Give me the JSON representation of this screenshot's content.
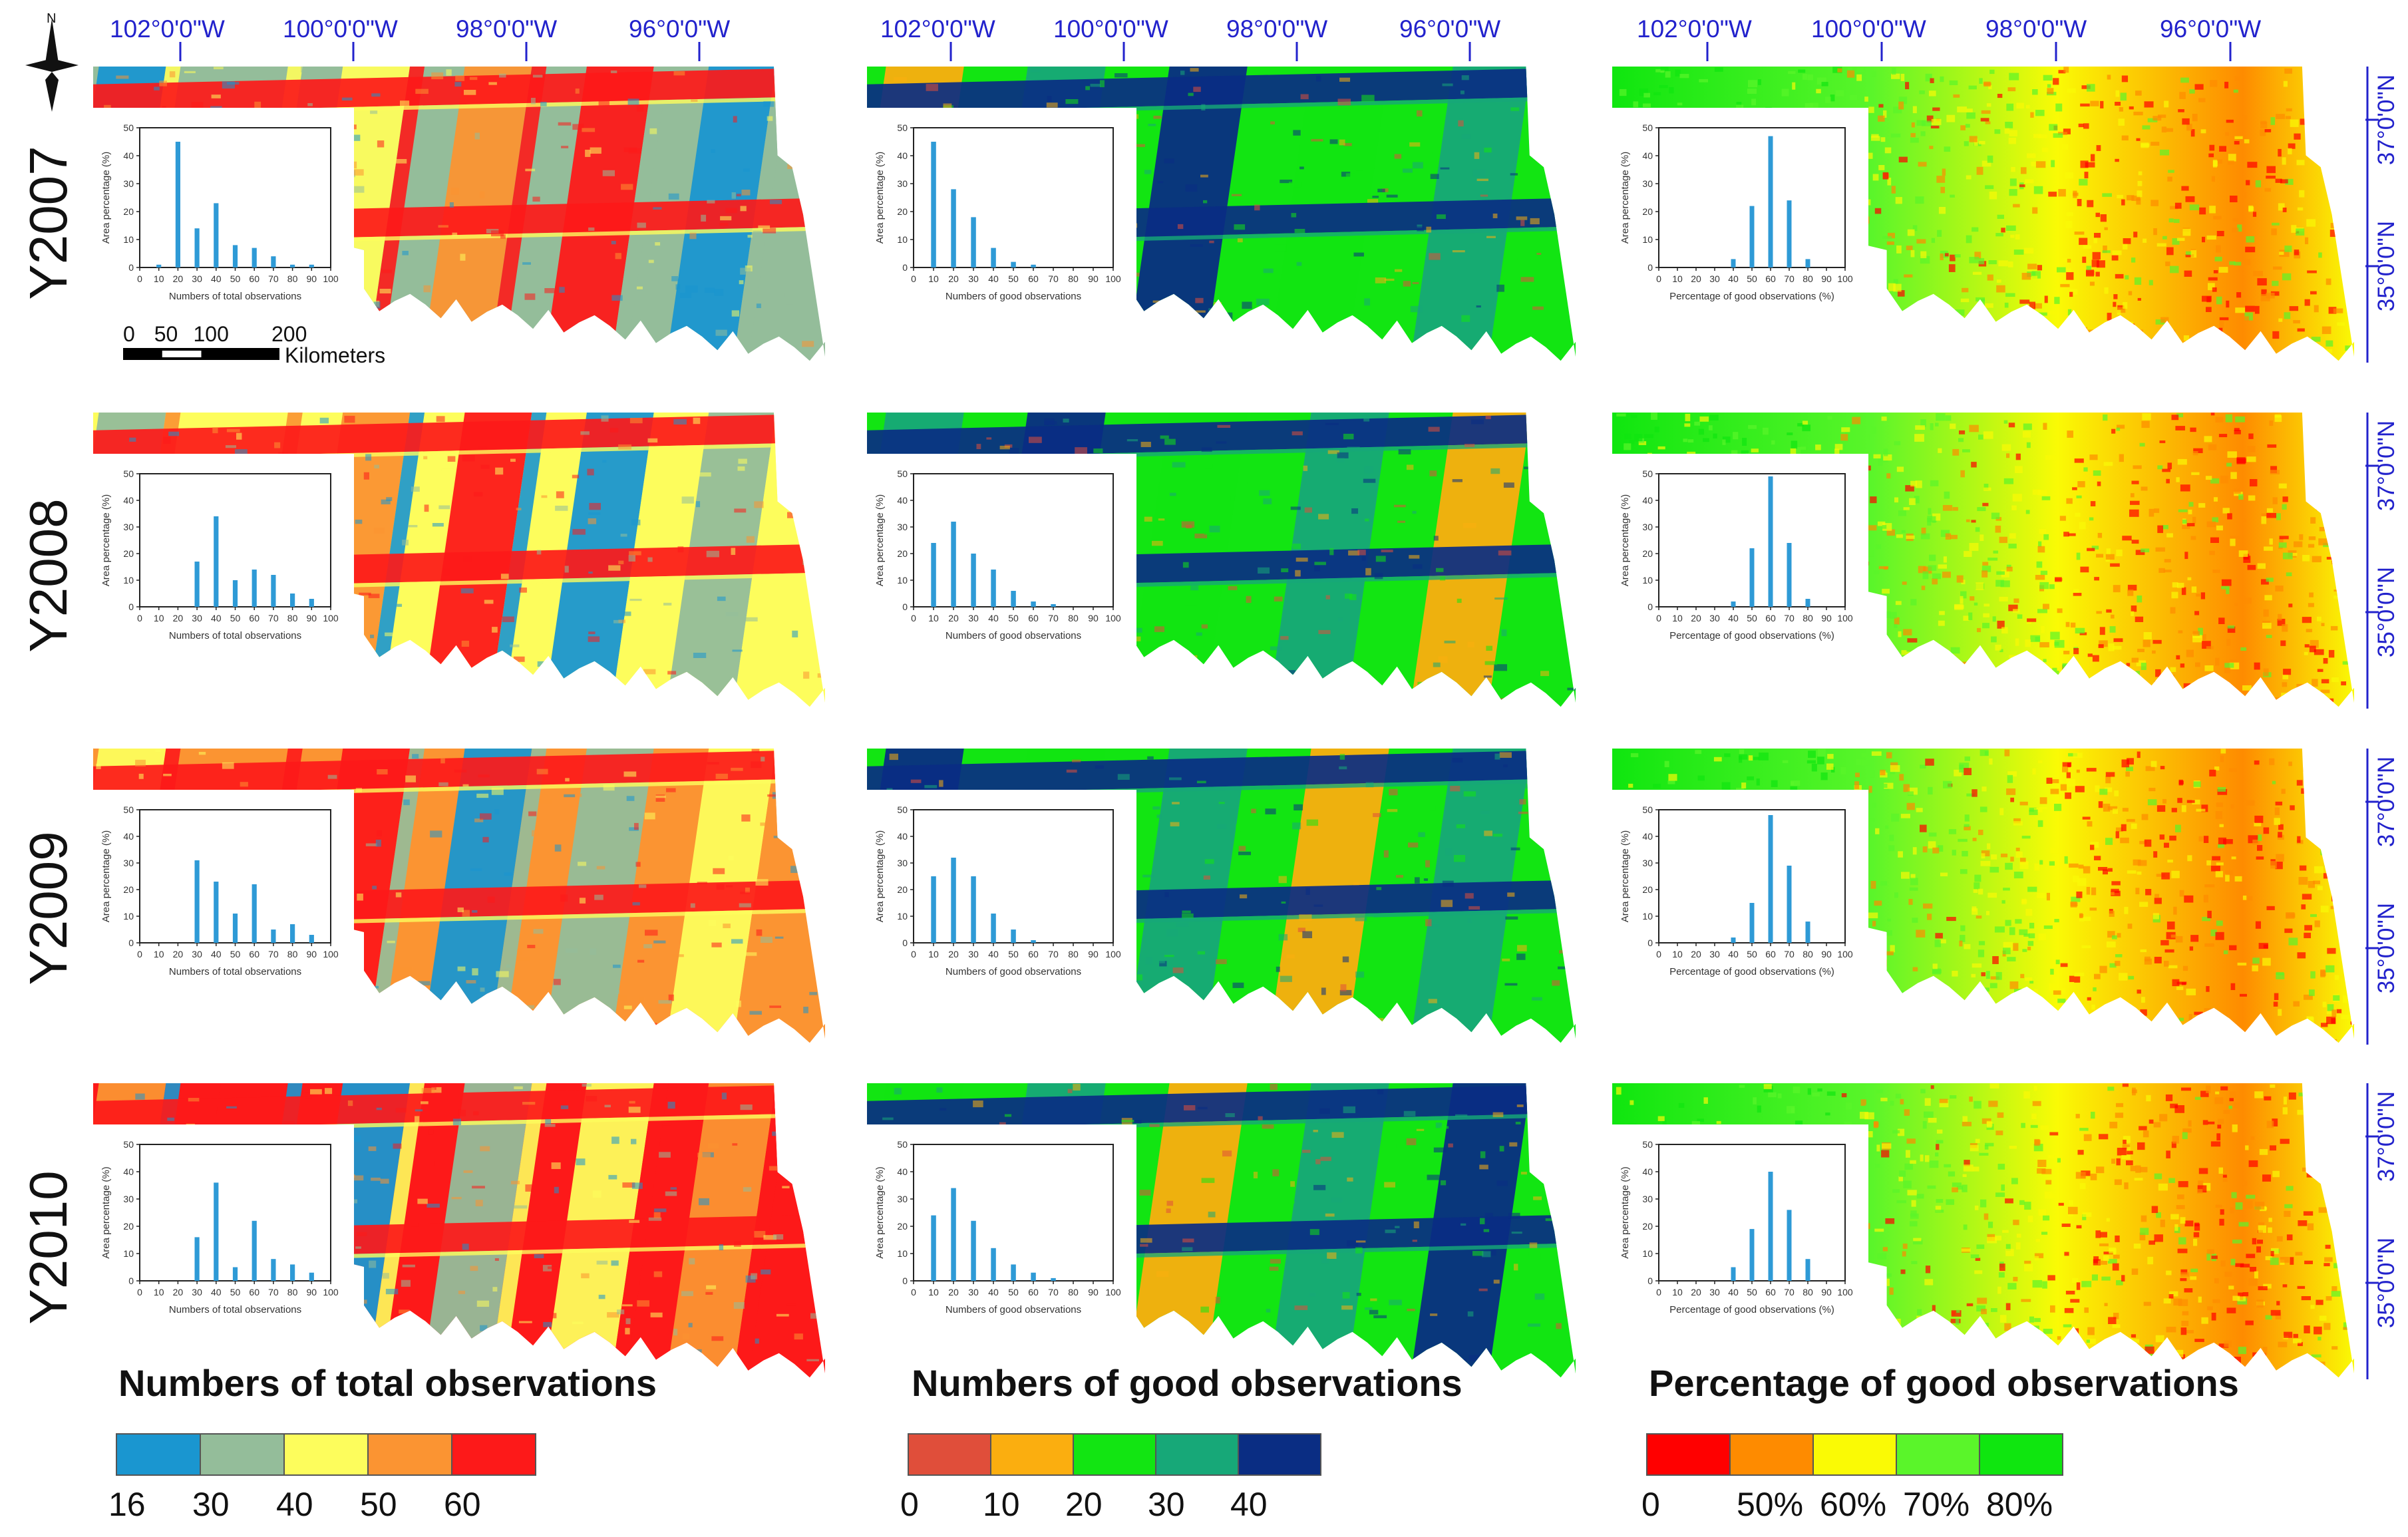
{
  "figure": {
    "years": [
      "Y2007",
      "Y2008",
      "Y2009",
      "Y2010"
    ],
    "lon_labels": [
      "102°0'0\"W",
      "100°0'0\"W",
      "98°0'0\"W",
      "96°0'0\"W"
    ],
    "lat_labels": [
      "37°0'0\"N",
      "35°0'0\"N"
    ],
    "north_arrow": "N",
    "scalebar": {
      "ticks": [
        "0",
        "50",
        "100",
        "200"
      ],
      "unit": "Kilometers"
    },
    "columns": [
      {
        "id": "total",
        "title": "Numbers of total observations",
        "legend_labels": [
          "16",
          "30",
          "40",
          "50",
          "60"
        ],
        "colors": [
          "#1a96d0",
          "#94bd9a",
          "#fdfd5c",
          "#fb9432",
          "#fd1919"
        ]
      },
      {
        "id": "good",
        "title": "Numbers of good observations",
        "legend_labels": [
          "0",
          "10",
          "20",
          "30",
          "40"
        ],
        "colors": [
          "#e04e3a",
          "#fbae0f",
          "#12e512",
          "#17a878",
          "#0a2d83"
        ]
      },
      {
        "id": "pct",
        "title": "Percentage of good observations",
        "legend_labels": [
          "0",
          "50%",
          "60%",
          "70%",
          "80%"
        ],
        "colors": [
          "#ff0000",
          "#fe8b00",
          "#fafa05",
          "#5af52a",
          "#0fe60f"
        ]
      }
    ]
  },
  "chart_data": [
    {
      "type": "bar",
      "map": "total",
      "year": "Y2007",
      "x": [
        10,
        20,
        30,
        40,
        50,
        60,
        70,
        80,
        90
      ],
      "values": [
        1,
        45,
        14,
        23,
        8,
        7,
        4,
        1,
        1
      ],
      "xlabel": "Numbers of total observations",
      "ylabel": "Area percentage (%)",
      "ylim": [
        0,
        50
      ],
      "xticks": [
        "0",
        "10",
        "20",
        "30",
        "40",
        "50",
        "60",
        "70",
        "80",
        "90",
        "100"
      ]
    },
    {
      "type": "bar",
      "map": "total",
      "year": "Y2008",
      "x": [
        30,
        40,
        50,
        60,
        70,
        80,
        90
      ],
      "values": [
        17,
        34,
        10,
        14,
        12,
        5,
        3
      ],
      "xlabel": "Numbers of total observations",
      "ylabel": "Area percentage (%)",
      "ylim": [
        0,
        50
      ],
      "xticks": [
        "0",
        "10",
        "20",
        "30",
        "40",
        "50",
        "60",
        "70",
        "80",
        "90",
        "100"
      ]
    },
    {
      "type": "bar",
      "map": "total",
      "year": "Y2009",
      "x": [
        30,
        40,
        50,
        60,
        70,
        80,
        90
      ],
      "values": [
        31,
        23,
        11,
        22,
        5,
        7,
        3
      ],
      "xlabel": "Numbers of total observations",
      "ylabel": "Area percentage (%)",
      "ylim": [
        0,
        50
      ],
      "xticks": [
        "0",
        "10",
        "20",
        "30",
        "40",
        "50",
        "60",
        "70",
        "80",
        "90",
        "100"
      ]
    },
    {
      "type": "bar",
      "map": "total",
      "year": "Y2010",
      "x": [
        30,
        40,
        50,
        60,
        70,
        80,
        90
      ],
      "values": [
        16,
        36,
        5,
        22,
        8,
        6,
        3
      ],
      "xlabel": "Numbers of total observations",
      "ylabel": "Area percentage (%)",
      "ylim": [
        0,
        50
      ],
      "xticks": [
        "0",
        "10",
        "20",
        "30",
        "40",
        "50",
        "60",
        "70",
        "80",
        "90",
        "100"
      ]
    },
    {
      "type": "bar",
      "map": "good",
      "year": "Y2007",
      "x": [
        10,
        20,
        30,
        40,
        50,
        60
      ],
      "values": [
        45,
        28,
        18,
        7,
        2,
        1
      ],
      "xlabel": "Numbers of good observations",
      "ylabel": "Area percentage (%)",
      "ylim": [
        0,
        50
      ],
      "xticks": [
        "0",
        "10",
        "20",
        "30",
        "40",
        "50",
        "60",
        "70",
        "80",
        "90",
        "100"
      ]
    },
    {
      "type": "bar",
      "map": "good",
      "year": "Y2008",
      "x": [
        10,
        20,
        30,
        40,
        50,
        60,
        70
      ],
      "values": [
        24,
        32,
        20,
        14,
        6,
        2,
        1
      ],
      "xlabel": "Numbers of good observations",
      "ylabel": "Area percentage (%)",
      "ylim": [
        0,
        50
      ],
      "xticks": [
        "0",
        "10",
        "20",
        "30",
        "40",
        "50",
        "60",
        "70",
        "80",
        "90",
        "100"
      ]
    },
    {
      "type": "bar",
      "map": "good",
      "year": "Y2009",
      "x": [
        10,
        20,
        30,
        40,
        50,
        60
      ],
      "values": [
        25,
        32,
        25,
        11,
        5,
        1
      ],
      "xlabel": "Numbers of good observations",
      "ylabel": "Area percentage (%)",
      "ylim": [
        0,
        50
      ],
      "xticks": [
        "0",
        "10",
        "20",
        "30",
        "40",
        "50",
        "60",
        "70",
        "80",
        "90",
        "100"
      ]
    },
    {
      "type": "bar",
      "map": "good",
      "year": "Y2010",
      "x": [
        10,
        20,
        30,
        40,
        50,
        60,
        70
      ],
      "values": [
        24,
        34,
        22,
        12,
        6,
        3,
        1
      ],
      "xlabel": "Numbers of good observations",
      "ylabel": "Area percentage (%)",
      "ylim": [
        0,
        50
      ],
      "xticks": [
        "0",
        "10",
        "20",
        "30",
        "40",
        "50",
        "60",
        "70",
        "80",
        "90",
        "100"
      ]
    },
    {
      "type": "bar",
      "map": "pct",
      "year": "Y2007",
      "x": [
        40,
        50,
        60,
        70,
        80
      ],
      "values": [
        3,
        22,
        47,
        24,
        3
      ],
      "xlabel": "Percentage of good observations (%)",
      "ylabel": "Area percentage (%)",
      "ylim": [
        0,
        50
      ],
      "xticks": [
        "0",
        "10",
        "20",
        "30",
        "40",
        "50",
        "60",
        "70",
        "80",
        "90",
        "100"
      ]
    },
    {
      "type": "bar",
      "map": "pct",
      "year": "Y2008",
      "x": [
        40,
        50,
        60,
        70,
        80
      ],
      "values": [
        2,
        22,
        49,
        24,
        3
      ],
      "xlabel": "Percentage of good observations (%)",
      "ylabel": "Area percentage (%)",
      "ylim": [
        0,
        50
      ],
      "xticks": [
        "0",
        "10",
        "20",
        "30",
        "40",
        "50",
        "60",
        "70",
        "80",
        "90",
        "100"
      ]
    },
    {
      "type": "bar",
      "map": "pct",
      "year": "Y2009",
      "x": [
        40,
        50,
        60,
        70,
        80
      ],
      "values": [
        2,
        15,
        48,
        29,
        8
      ],
      "xlabel": "Percentage of good observations (%)",
      "ylabel": "Area percentage (%)",
      "ylim": [
        0,
        50
      ],
      "xticks": [
        "0",
        "10",
        "20",
        "30",
        "40",
        "50",
        "60",
        "70",
        "80",
        "90",
        "100"
      ]
    },
    {
      "type": "bar",
      "map": "pct",
      "year": "Y2010",
      "x": [
        40,
        50,
        60,
        70,
        80
      ],
      "values": [
        5,
        19,
        40,
        26,
        8
      ],
      "xlabel": "Percentage of good observations (%)",
      "ylabel": "Area percentage (%)",
      "ylim": [
        0,
        50
      ],
      "xticks": [
        "0",
        "10",
        "20",
        "30",
        "40",
        "50",
        "60",
        "70",
        "80",
        "90",
        "100"
      ]
    }
  ]
}
